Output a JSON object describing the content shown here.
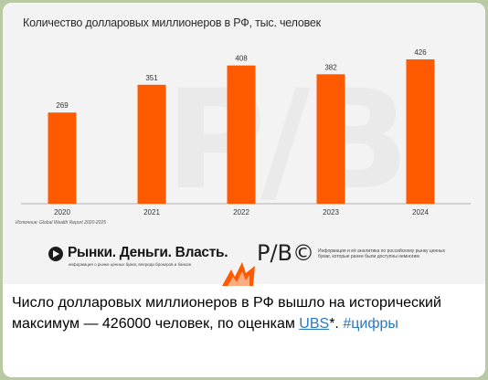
{
  "post": {
    "text_before_link": "Число долларовых миллионеров в РФ вышло на исторический максимум — 426000 человек, по оценкам ",
    "link_text": "UBS",
    "text_after_link": "*. ",
    "hashtag": "#цифры"
  },
  "brand": {
    "name": "Рынки. Деньги. Власть.",
    "tagline": "информация о рынке ценных бумаг, впереди брокеров и банков",
    "mark": "P/B©",
    "info": "Информация и её аналитика по российскому рынку ценных бумаг, которые ранее были доступны немногим"
  },
  "watermark": "P/B",
  "source_note": "Источник: Global Wealth Report 2020-2025",
  "colors": {
    "bar": "#ff5a00",
    "link": "#2b79bd"
  },
  "chart_data": {
    "type": "bar",
    "title": "Количество долларовых миллионеров в РФ, тыс. человек",
    "categories": [
      "2020",
      "2021",
      "2022",
      "2023",
      "2024"
    ],
    "values": [
      269,
      351,
      408,
      382,
      426
    ],
    "ylim": [
      0,
      426
    ],
    "grid": false
  }
}
